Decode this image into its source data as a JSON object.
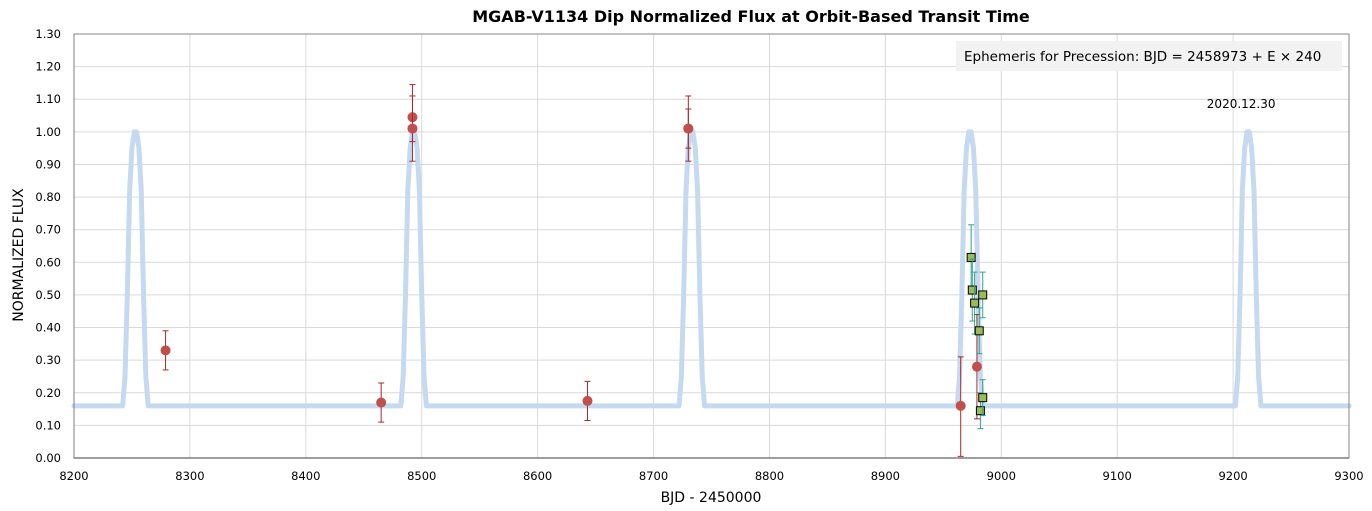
{
  "chart_data": {
    "type": "scatter",
    "title": "MGAB-V1134 Dip Normalized Flux at Orbit-Based Transit Time",
    "xlabel": "BJD - 2450000",
    "ylabel": "NORMALIZED FLUX",
    "xlim": [
      8200,
      9300
    ],
    "ylim": [
      0.0,
      1.3
    ],
    "x_ticks": [
      "8200",
      "8300",
      "8400",
      "8500",
      "8600",
      "8700",
      "8800",
      "8900",
      "9000",
      "9100",
      "9200",
      "9300"
    ],
    "y_ticks": [
      "0.00",
      "0.10",
      "0.20",
      "0.30",
      "0.40",
      "0.50",
      "0.60",
      "0.70",
      "0.80",
      "0.90",
      "1.00",
      "1.10",
      "1.20",
      "1.30"
    ],
    "grid": true,
    "ephemeris_text": "Ephemeris for Precession:  BJD = 2458973 + E × 240",
    "annotation": {
      "text": "2020.12.30",
      "x": 9213,
      "y": 1.03
    },
    "colors": {
      "model": "#c5d9f1",
      "red_series": "#c0504d",
      "green_series": "#9bbb59",
      "green_error": "#31a38c",
      "grid": "#d9d9d9",
      "axis": "#868686",
      "ephemeris_box": "#f2f2f2"
    },
    "series": [
      {
        "kind": "model-curve",
        "baseline": 0.16,
        "peak": 1.0,
        "centers": [
          8253,
          8493,
          8733,
          8973,
          9213
        ],
        "x": [
          -11,
          -9,
          -7,
          -5,
          -3,
          -1,
          0,
          1,
          3,
          5,
          7,
          9,
          11
        ],
        "y": [
          0.16,
          0.25,
          0.5,
          0.82,
          0.95,
          1.0,
          1.0,
          1.0,
          0.95,
          0.82,
          0.5,
          0.25,
          0.16
        ]
      },
      {
        "kind": "red-points",
        "points": [
          {
            "x": 8279,
            "y": 0.33,
            "lo": 0.27,
            "hi": 0.39
          },
          {
            "x": 8465,
            "y": 0.17,
            "lo": 0.11,
            "hi": 0.23
          },
          {
            "x": 8492,
            "y": 1.045,
            "lo": 0.97,
            "hi": 1.145
          },
          {
            "x": 8492,
            "y": 1.01,
            "lo": 0.91,
            "hi": 1.11
          },
          {
            "x": 8643,
            "y": 0.175,
            "lo": 0.115,
            "hi": 0.235
          },
          {
            "x": 8730,
            "y": 1.01,
            "lo": 0.95,
            "hi": 1.07
          },
          {
            "x": 8730,
            "y": 1.01,
            "lo": 0.91,
            "hi": 1.11
          },
          {
            "x": 8965,
            "y": 0.16,
            "lo": 0.005,
            "hi": 0.31
          },
          {
            "x": 8979,
            "y": 0.28,
            "lo": 0.12,
            "hi": 0.44
          }
        ]
      },
      {
        "kind": "green-squares",
        "points": [
          {
            "x": 8974,
            "y": 0.615,
            "lo": 0.52,
            "hi": 0.715
          },
          {
            "x": 8975,
            "y": 0.515,
            "lo": 0.42,
            "hi": 0.61
          },
          {
            "x": 8977,
            "y": 0.475,
            "lo": 0.38,
            "hi": 0.57
          },
          {
            "x": 8981,
            "y": 0.39,
            "lo": 0.32,
            "hi": 0.46
          },
          {
            "x": 8982,
            "y": 0.145,
            "lo": 0.09,
            "hi": 0.2
          },
          {
            "x": 8984,
            "y": 0.5,
            "lo": 0.43,
            "hi": 0.57
          },
          {
            "x": 8984,
            "y": 0.185,
            "lo": 0.13,
            "hi": 0.24
          }
        ]
      }
    ]
  }
}
